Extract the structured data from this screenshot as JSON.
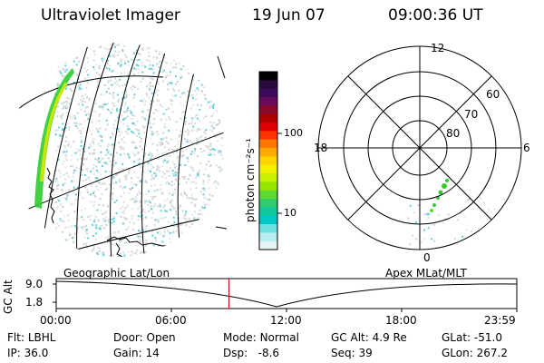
{
  "header": {
    "title": "Ultraviolet Imager",
    "date": "19 Jun 07",
    "time": "09:00:36 UT"
  },
  "colorbar": {
    "label": "photon cm⁻²s⁻¹",
    "ticks": [
      "100",
      "10"
    ],
    "colors": [
      "#000000",
      "#2a0a3a",
      "#3b0a5a",
      "#6a0a5a",
      "#8a0a2a",
      "#b00000",
      "#dd0000",
      "#ff3300",
      "#ff7700",
      "#ffaa00",
      "#ffd400",
      "#f2f200",
      "#c8f000",
      "#96e600",
      "#5fd832",
      "#2ecc6a",
      "#10c8a0",
      "#00c8c8",
      "#6ee0e0",
      "#b4eeee",
      "#e6f6f6"
    ]
  },
  "polar": {
    "mlt_labels": {
      "top": "12",
      "left": "18",
      "right": "6",
      "bottom": "0"
    },
    "lat_labels": [
      "60",
      "70",
      "80"
    ]
  },
  "timeline": {
    "left_label": "Geographic Lat/Lon",
    "right_label": "Apex MLat/MLT",
    "axis_title": "GC Alt",
    "y_ticks": [
      "9.0",
      "1.8"
    ],
    "x_ticks": [
      "00:00",
      "06:00",
      "12:00",
      "18:00",
      "23:59"
    ],
    "current_time_fraction": 0.375
  },
  "info": {
    "row1": [
      {
        "label": "Flt:",
        "value": "LBHL"
      },
      {
        "label": "Door:",
        "value": "Open"
      },
      {
        "label": "Mode:",
        "value": "Normal"
      },
      {
        "label": "GC Alt:",
        "value": "4.9 Re"
      },
      {
        "label": "GLat:",
        "value": "-51.0"
      }
    ],
    "row2": [
      {
        "label": "IP:",
        "value": "36.0"
      },
      {
        "label": "Gain:",
        "value": "14"
      },
      {
        "label": "Dsp:",
        "value": "-8.6"
      },
      {
        "label": "Seq:",
        "value": "39"
      },
      {
        "label": "GLon:",
        "value": "267.2"
      }
    ]
  },
  "colors": {
    "aurora_green": "#2ecc2e",
    "aurora_yellow": "#d8e800",
    "speckle_cyan": "#5fd0d8",
    "marker_red": "#cc0000"
  }
}
